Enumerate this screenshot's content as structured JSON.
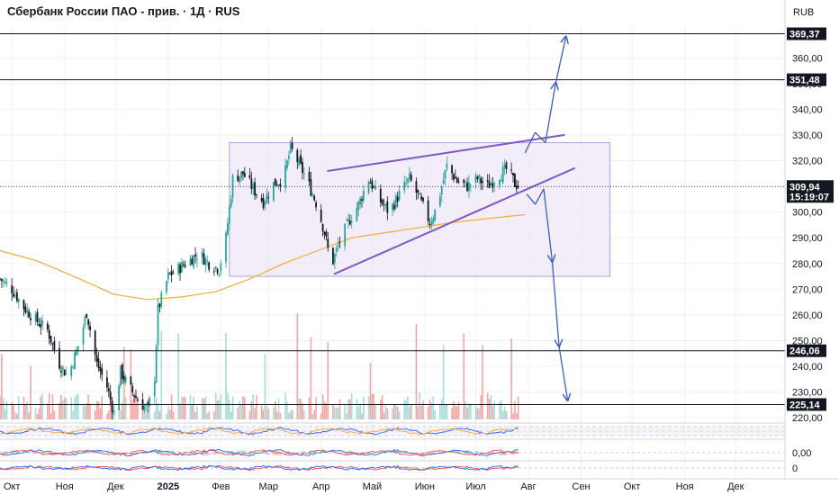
{
  "header": {
    "title": "Сбербанк России ПАО - прив. · 1Д · RUS",
    "currency": "RUB"
  },
  "colors": {
    "up": "#26a69a",
    "down": "#131722",
    "ma": "#f6a93b",
    "trend": "#7e57c2",
    "arrow": "#3b5fbf",
    "box_fill": "#ede7f6",
    "box_stroke": "#b39ddb",
    "level": "#131722",
    "grid": "#eef0f3"
  },
  "chart_data": {
    "type": "candlestick",
    "title": "Сбербанк России ПАО - прив. · 1Д · RUS",
    "currency": "RUB",
    "y_ticks": [
      {
        "value": 220,
        "label": "220,00"
      },
      {
        "value": 230,
        "label": "230,00"
      },
      {
        "value": 240,
        "label": "240,00"
      },
      {
        "value": 250,
        "label": "250,00"
      },
      {
        "value": 260,
        "label": "260,00"
      },
      {
        "value": 270,
        "label": "270,00"
      },
      {
        "value": 280,
        "label": "280,00"
      },
      {
        "value": 290,
        "label": "290,00"
      },
      {
        "value": 300,
        "label": "300,00"
      },
      {
        "value": 310,
        "label": "310,00"
      },
      {
        "value": 320,
        "label": "320,00"
      },
      {
        "value": 330,
        "label": "330,00"
      },
      {
        "value": 340,
        "label": "340,00"
      },
      {
        "value": 350,
        "label": "350,00"
      },
      {
        "value": 360,
        "label": "360,00"
      }
    ],
    "ylim": [
      219,
      372
    ],
    "x_months": [
      {
        "label": "Окт",
        "day": 0
      },
      {
        "label": "Ноя",
        "day": 31
      },
      {
        "label": "Дек",
        "day": 61
      },
      {
        "label": "2025",
        "day": 92
      },
      {
        "label": "Фев",
        "day": 123
      },
      {
        "label": "Мар",
        "day": 151
      },
      {
        "label": "Апр",
        "day": 182
      },
      {
        "label": "Май",
        "day": 212
      },
      {
        "label": "Июн",
        "day": 243
      },
      {
        "label": "Июл",
        "day": 273
      },
      {
        "label": "Авг",
        "day": 304
      },
      {
        "label": "Сен",
        "day": 335
      },
      {
        "label": "Окт",
        "day": 365
      },
      {
        "label": "Ноя",
        "day": 396
      },
      {
        "label": "Дек",
        "day": 426
      }
    ],
    "xlim_days": [
      -7,
      455
    ],
    "levels": [
      {
        "value": 369.37,
        "label": "369,37"
      },
      {
        "value": 351.48,
        "label": "351,48"
      },
      {
        "value": 246.06,
        "label": "246,06"
      },
      {
        "value": 225.14,
        "label": "225,14"
      }
    ],
    "last_price": {
      "value": 309.94,
      "label": "309,94",
      "countdown": "15:19:07"
    },
    "close_path": [
      {
        "day": -7,
        "close": 274
      },
      {
        "day": 0,
        "close": 270
      },
      {
        "day": 7,
        "close": 263
      },
      {
        "day": 14,
        "close": 258
      },
      {
        "day": 21,
        "close": 254
      },
      {
        "day": 28,
        "close": 241
      },
      {
        "day": 33,
        "close": 236
      },
      {
        "day": 40,
        "close": 250
      },
      {
        "day": 44,
        "close": 261
      },
      {
        "day": 50,
        "close": 241
      },
      {
        "day": 56,
        "close": 232
      },
      {
        "day": 60,
        "close": 222
      },
      {
        "day": 64,
        "close": 238
      },
      {
        "day": 68,
        "close": 233
      },
      {
        "day": 74,
        "close": 227
      },
      {
        "day": 80,
        "close": 223
      },
      {
        "day": 84,
        "close": 236
      },
      {
        "day": 86,
        "close": 262
      },
      {
        "day": 92,
        "close": 275
      },
      {
        "day": 98,
        "close": 278
      },
      {
        "day": 104,
        "close": 281
      },
      {
        "day": 110,
        "close": 284
      },
      {
        "day": 116,
        "close": 280
      },
      {
        "day": 122,
        "close": 278
      },
      {
        "day": 126,
        "close": 290
      },
      {
        "day": 130,
        "close": 313
      },
      {
        "day": 136,
        "close": 315
      },
      {
        "day": 142,
        "close": 309
      },
      {
        "day": 148,
        "close": 304
      },
      {
        "day": 154,
        "close": 311
      },
      {
        "day": 160,
        "close": 313
      },
      {
        "day": 164,
        "close": 325
      },
      {
        "day": 168,
        "close": 320
      },
      {
        "day": 174,
        "close": 312
      },
      {
        "day": 180,
        "close": 302
      },
      {
        "day": 184,
        "close": 292
      },
      {
        "day": 188,
        "close": 279
      },
      {
        "day": 192,
        "close": 287
      },
      {
        "day": 198,
        "close": 296
      },
      {
        "day": 204,
        "close": 303
      },
      {
        "day": 210,
        "close": 313
      },
      {
        "day": 216,
        "close": 305
      },
      {
        "day": 222,
        "close": 300
      },
      {
        "day": 228,
        "close": 307
      },
      {
        "day": 234,
        "close": 313
      },
      {
        "day": 240,
        "close": 305
      },
      {
        "day": 246,
        "close": 296
      },
      {
        "day": 250,
        "close": 302
      },
      {
        "day": 256,
        "close": 318
      },
      {
        "day": 262,
        "close": 312
      },
      {
        "day": 268,
        "close": 310
      },
      {
        "day": 274,
        "close": 313
      },
      {
        "day": 280,
        "close": 310
      },
      {
        "day": 286,
        "close": 314
      },
      {
        "day": 292,
        "close": 317
      },
      {
        "day": 296,
        "close": 311
      },
      {
        "day": 300,
        "close": 309.94
      }
    ],
    "moving_average": [
      {
        "day": -7,
        "value": 285
      },
      {
        "day": 15,
        "value": 281
      },
      {
        "day": 40,
        "value": 274
      },
      {
        "day": 60,
        "value": 268
      },
      {
        "day": 80,
        "value": 266
      },
      {
        "day": 100,
        "value": 267
      },
      {
        "day": 120,
        "value": 269
      },
      {
        "day": 140,
        "value": 274
      },
      {
        "day": 160,
        "value": 280
      },
      {
        "day": 180,
        "value": 285
      },
      {
        "day": 200,
        "value": 290
      },
      {
        "day": 220,
        "value": 292
      },
      {
        "day": 240,
        "value": 294
      },
      {
        "day": 260,
        "value": 296
      },
      {
        "day": 280,
        "value": 297.5
      },
      {
        "day": 302,
        "value": 299
      }
    ],
    "range_box": {
      "day_start": 128,
      "day_end": 352,
      "top": 327,
      "bottom": 275
    },
    "trend_lines": [
      {
        "name": "upper",
        "from": {
          "day": 186,
          "price": 316
        },
        "to": {
          "day": 325,
          "price": 330
        }
      },
      {
        "name": "lower",
        "from": {
          "day": 190,
          "price": 276
        },
        "to": {
          "day": 331,
          "price": 317
        }
      }
    ],
    "scenario_arrows": [
      {
        "name": "bullish",
        "points": [
          {
            "day": 302,
            "price": 323
          },
          {
            "day": 308,
            "price": 331
          },
          {
            "day": 314,
            "price": 327
          },
          {
            "day": 320,
            "price": 350
          },
          {
            "day": 326,
            "price": 368
          }
        ]
      },
      {
        "name": "bearish",
        "points": [
          {
            "day": 303,
            "price": 307
          },
          {
            "day": 308,
            "price": 303
          },
          {
            "day": 313,
            "price": 309
          },
          {
            "day": 318,
            "price": 281
          },
          {
            "day": 322,
            "price": 248
          },
          {
            "day": 327,
            "price": 227
          }
        ]
      }
    ],
    "sub_panels": [
      {
        "name": "oscillator-1",
        "tick_label": ""
      },
      {
        "name": "oscillator-2",
        "tick_label": "0,00"
      },
      {
        "name": "oscillator-3",
        "tick_label": "0"
      }
    ]
  }
}
